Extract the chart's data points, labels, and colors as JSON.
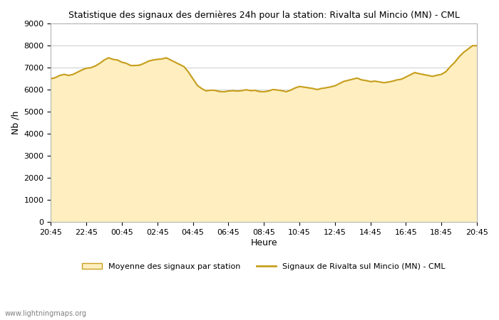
{
  "title": "Statistique des signaux des dernières 24h pour la station: Rivalta sul Mincio (MN) - CML",
  "xlabel": "Heure",
  "ylabel": "Nb /h",
  "ylim": [
    0,
    9000
  ],
  "yticks": [
    0,
    1000,
    2000,
    3000,
    4000,
    5000,
    6000,
    7000,
    8000,
    9000
  ],
  "xtick_labels": [
    "20:45",
    "22:45",
    "00:45",
    "02:45",
    "04:45",
    "06:45",
    "08:45",
    "10:45",
    "12:45",
    "14:45",
    "16:45",
    "18:45",
    "20:45"
  ],
  "fill_color": "#ffefc0",
  "fill_edge_color": "#c8a020",
  "line_color": "#c8a020",
  "background_color": "#ffffff",
  "grid_color": "#cccccc",
  "watermark": "www.lightningmaps.org",
  "legend_fill": "Moyenne des signaux par station",
  "legend_line": "Signaux de Rivalta sul Mincio (MN) - CML",
  "x_values": [
    0,
    1,
    2,
    3,
    4,
    5,
    6,
    7,
    8,
    9,
    10,
    11,
    12,
    13,
    14,
    15,
    16,
    17,
    18,
    19,
    20,
    21,
    22,
    23,
    24,
    25,
    26,
    27,
    28,
    29,
    30,
    31,
    32,
    33,
    34,
    35,
    36,
    37,
    38,
    39,
    40,
    41,
    42,
    43,
    44,
    45,
    46,
    47,
    48,
    49,
    50,
    51,
    52,
    53,
    54,
    55,
    56,
    57,
    58,
    59,
    60,
    61,
    62,
    63,
    64,
    65,
    66,
    67,
    68,
    69,
    70,
    71,
    72,
    73,
    74,
    75,
    76,
    77,
    78,
    79,
    80,
    81,
    82,
    83,
    84,
    85,
    86,
    87,
    88,
    89,
    90,
    91,
    92,
    93,
    94,
    95,
    96
  ],
  "y_fill": [
    6500,
    6550,
    6650,
    6700,
    6650,
    6700,
    6800,
    6900,
    6980,
    7000,
    7080,
    7200,
    7350,
    7450,
    7380,
    7350,
    7250,
    7200,
    7100,
    7100,
    7120,
    7200,
    7300,
    7350,
    7380,
    7400,
    7450,
    7350,
    7250,
    7150,
    7050,
    6800,
    6500,
    6200,
    6050,
    5950,
    5980,
    5970,
    5920,
    5910,
    5940,
    5960,
    5940,
    5960,
    6000,
    5960,
    5970,
    5920,
    5910,
    5940,
    6010,
    5990,
    5960,
    5910,
    5980,
    6080,
    6150,
    6120,
    6090,
    6060,
    6010,
    6060,
    6090,
    6130,
    6180,
    6280,
    6380,
    6430,
    6480,
    6530,
    6450,
    6420,
    6370,
    6390,
    6360,
    6320,
    6350,
    6390,
    6450,
    6480,
    6580,
    6680,
    6780,
    6730,
    6690,
    6650,
    6610,
    6660,
    6700,
    6820,
    7050,
    7250,
    7500,
    7700,
    7850,
    8000,
    8000
  ],
  "y_line": [
    6500,
    6550,
    6650,
    6700,
    6650,
    6700,
    6800,
    6900,
    6980,
    7000,
    7080,
    7200,
    7350,
    7450,
    7380,
    7350,
    7250,
    7200,
    7100,
    7100,
    7120,
    7200,
    7300,
    7350,
    7380,
    7400,
    7450,
    7350,
    7250,
    7150,
    7050,
    6800,
    6500,
    6200,
    6050,
    5950,
    5980,
    5970,
    5920,
    5910,
    5940,
    5960,
    5940,
    5960,
    6000,
    5960,
    5970,
    5920,
    5910,
    5940,
    6010,
    5990,
    5960,
    5910,
    5980,
    6080,
    6150,
    6120,
    6090,
    6060,
    6010,
    6060,
    6090,
    6130,
    6180,
    6280,
    6380,
    6430,
    6480,
    6530,
    6450,
    6420,
    6370,
    6390,
    6360,
    6320,
    6350,
    6390,
    6450,
    6480,
    6580,
    6680,
    6780,
    6730,
    6690,
    6650,
    6610,
    6660,
    6700,
    6820,
    7050,
    7250,
    7500,
    7700,
    7850,
    8000,
    8000
  ]
}
